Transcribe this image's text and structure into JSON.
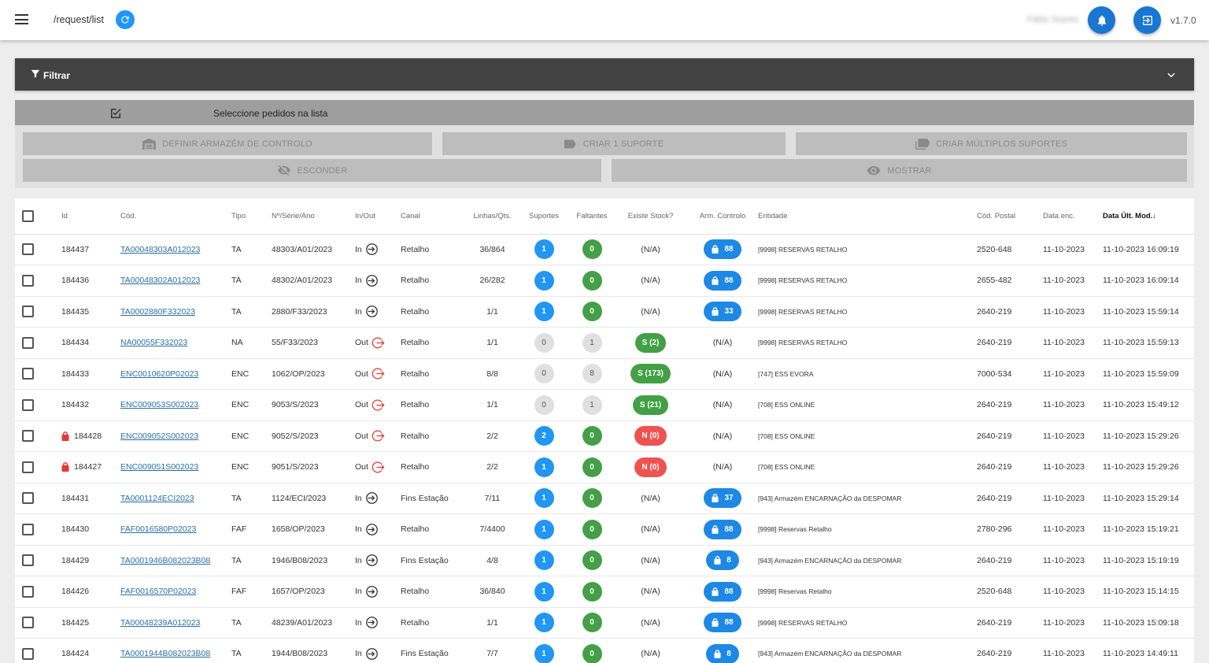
{
  "header": {
    "route": "/request/list",
    "username": "Fábio Soares",
    "version": "v1.7.0"
  },
  "filter": {
    "label": "Filtrar"
  },
  "selection": {
    "text": "Seleccione pedidos na lista"
  },
  "actions": {
    "definir": "DEFINIR ARMAZÉM DE CONTROLO",
    "criar1": "CRIAR 1 SUPORTE",
    "criarMulti": "CRIAR MÚLTIPLOS SUPORTES",
    "esconder": "ESCONDER",
    "mostrar": "MOSTRAR"
  },
  "table": {
    "columns": [
      "Id",
      "Cód.",
      "Tipo",
      "Nº/Série/Ano",
      "In/Out",
      "Canal",
      "Linhas/Qts.",
      "Suportes",
      "Faltantes",
      "Existe Stock?",
      "Arm. Controlo",
      "Entidade",
      "Cód. Postal",
      "Data enc.",
      "Data Últ. Mod."
    ],
    "sort_arrow": "↓",
    "rows": [
      {
        "id": "184437",
        "locked": false,
        "cod": "TA00048303A012023",
        "tipo": "TA",
        "nsa": "48303/A01/2023",
        "io": "In",
        "canal": "Retalho",
        "lq": "36/864",
        "sup": "1",
        "sup_c": "blue",
        "falt": "0",
        "falt_c": "green",
        "stock": "(N/A)",
        "stock_c": "",
        "arm": "88",
        "ent": "[9998] RESERVAS RETALHO",
        "cp": "2520-648",
        "denc": "11-10-2023",
        "dmod": "11-10-2023 16:09:19"
      },
      {
        "id": "184436",
        "locked": false,
        "cod": "TA00048302A012023",
        "tipo": "TA",
        "nsa": "48302/A01/2023",
        "io": "In",
        "canal": "Retalho",
        "lq": "26/282",
        "sup": "1",
        "sup_c": "blue",
        "falt": "0",
        "falt_c": "green",
        "stock": "(N/A)",
        "stock_c": "",
        "arm": "88",
        "ent": "[9998] RESERVAS RETALHO",
        "cp": "2655-482",
        "denc": "11-10-2023",
        "dmod": "11-10-2023 16:09:14"
      },
      {
        "id": "184435",
        "locked": false,
        "cod": "TA0002880F332023",
        "tipo": "TA",
        "nsa": "2880/F33/2023",
        "io": "In",
        "canal": "Retalho",
        "lq": "1/1",
        "sup": "1",
        "sup_c": "blue",
        "falt": "0",
        "falt_c": "green",
        "stock": "(N/A)",
        "stock_c": "",
        "arm": "33",
        "ent": "[9998] RESERVAS RETALHO",
        "cp": "2640-219",
        "denc": "11-10-2023",
        "dmod": "11-10-2023 15:59:14"
      },
      {
        "id": "184434",
        "locked": false,
        "cod": "NA00055F332023",
        "tipo": "NA",
        "nsa": "55/F33/2023",
        "io": "Out",
        "canal": "Retalho",
        "lq": "1/1",
        "sup": "0",
        "sup_c": "grey",
        "falt": "1",
        "falt_c": "grey",
        "stock": "S (2)",
        "stock_c": "green",
        "arm": "",
        "armtext": "(N/A)",
        "ent": "[9998] RESERVAS RETALHO",
        "cp": "2640-219",
        "denc": "11-10-2023",
        "dmod": "11-10-2023 15:59:13"
      },
      {
        "id": "184433",
        "locked": false,
        "cod": "ENC0010620P02023",
        "tipo": "ENC",
        "nsa": "1062/OP/2023",
        "io": "Out",
        "canal": "Retalho",
        "lq": "8/8",
        "sup": "0",
        "sup_c": "grey",
        "falt": "8",
        "falt_c": "grey",
        "stock": "S (173)",
        "stock_c": "green",
        "arm": "",
        "armtext": "(N/A)",
        "ent": "[747] ESS EVORA",
        "cp": "7000-534",
        "denc": "11-10-2023",
        "dmod": "11-10-2023 15:59:09"
      },
      {
        "id": "184432",
        "locked": false,
        "cod": "ENC009053S002023",
        "tipo": "ENC",
        "nsa": "9053/S/2023",
        "io": "Out",
        "canal": "Retalho",
        "lq": "1/1",
        "sup": "0",
        "sup_c": "grey",
        "falt": "1",
        "falt_c": "grey",
        "stock": "S (21)",
        "stock_c": "green",
        "arm": "",
        "armtext": "(N/A)",
        "ent": "[708] ESS ONLINE",
        "cp": "2640-219",
        "denc": "11-10-2023",
        "dmod": "11-10-2023 15:49:12"
      },
      {
        "id": "184428",
        "locked": true,
        "cod": "ENC009052S002023",
        "tipo": "ENC",
        "nsa": "9052/S/2023",
        "io": "Out",
        "canal": "Retalho",
        "lq": "2/2",
        "sup": "2",
        "sup_c": "blue",
        "falt": "0",
        "falt_c": "green",
        "stock": "N (0)",
        "stock_c": "red",
        "arm": "",
        "armtext": "(N/A)",
        "ent": "[708] ESS ONLINE",
        "cp": "2640-219",
        "denc": "11-10-2023",
        "dmod": "11-10-2023 15:29:26"
      },
      {
        "id": "184427",
        "locked": true,
        "cod": "ENC009051S002023",
        "tipo": "ENC",
        "nsa": "9051/S/2023",
        "io": "Out",
        "canal": "Retalho",
        "lq": "2/2",
        "sup": "1",
        "sup_c": "blue",
        "falt": "0",
        "falt_c": "green",
        "stock": "N (0)",
        "stock_c": "red",
        "arm": "",
        "armtext": "(N/A)",
        "ent": "[708] ESS ONLINE",
        "cp": "2640-219",
        "denc": "11-10-2023",
        "dmod": "11-10-2023 15:29:26"
      },
      {
        "id": "184431",
        "locked": false,
        "cod": "TA0001124ECI2023",
        "tipo": "TA",
        "nsa": "1124/ECI/2023",
        "io": "In",
        "canal": "Fins Estação",
        "lq": "7/11",
        "sup": "1",
        "sup_c": "blue",
        "falt": "0",
        "falt_c": "green",
        "stock": "(N/A)",
        "stock_c": "",
        "arm": "37",
        "ent": "[943] Armazém ENCARNAÇÃO da DESPOMAR",
        "cp": "2640-219",
        "denc": "11-10-2023",
        "dmod": "11-10-2023 15:29:14"
      },
      {
        "id": "184430",
        "locked": false,
        "cod": "FAF0016580P02023",
        "tipo": "FAF",
        "nsa": "1658/OP/2023",
        "io": "In",
        "canal": "Retalho",
        "lq": "7/4400",
        "sup": "1",
        "sup_c": "blue",
        "falt": "0",
        "falt_c": "green",
        "stock": "(N/A)",
        "stock_c": "",
        "arm": "88",
        "ent": "[9998] Reservas Retalho",
        "cp": "2780-296",
        "denc": "11-10-2023",
        "dmod": "11-10-2023 15:19:21"
      },
      {
        "id": "184429",
        "locked": false,
        "cod": "TA0001946B082023B08",
        "tipo": "TA",
        "nsa": "1946/B08/2023",
        "io": "In",
        "canal": "Fins Estação",
        "lq": "4/8",
        "sup": "1",
        "sup_c": "blue",
        "falt": "0",
        "falt_c": "green",
        "stock": "(N/A)",
        "stock_c": "",
        "arm": "8",
        "ent": "[943] Armazém ENCARNAÇÃO da DESPOMAR",
        "cp": "2640-219",
        "denc": "11-10-2023",
        "dmod": "11-10-2023 15:19:19"
      },
      {
        "id": "184426",
        "locked": false,
        "cod": "FAF0016570P02023",
        "tipo": "FAF",
        "nsa": "1657/OP/2023",
        "io": "In",
        "canal": "Retalho",
        "lq": "36/840",
        "sup": "1",
        "sup_c": "blue",
        "falt": "0",
        "falt_c": "green",
        "stock": "(N/A)",
        "stock_c": "",
        "arm": "88",
        "ent": "[9998] Reservas Retalho",
        "cp": "2520-648",
        "denc": "11-10-2023",
        "dmod": "11-10-2023 15:14:15"
      },
      {
        "id": "184425",
        "locked": false,
        "cod": "TA00048239A012023",
        "tipo": "TA",
        "nsa": "48239/A01/2023",
        "io": "In",
        "canal": "Retalho",
        "lq": "1/1",
        "sup": "1",
        "sup_c": "blue",
        "falt": "0",
        "falt_c": "green",
        "stock": "(N/A)",
        "stock_c": "",
        "arm": "88",
        "ent": "[9998] RESERVAS RETALHO",
        "cp": "2640-219",
        "denc": "11-10-2023",
        "dmod": "11-10-2023 15:09:18"
      },
      {
        "id": "184424",
        "locked": false,
        "cod": "TA0001944B082023B08",
        "tipo": "TA",
        "nsa": "1944/B08/2023",
        "io": "In",
        "canal": "Fins Estação",
        "lq": "7/7",
        "sup": "1",
        "sup_c": "blue",
        "falt": "0",
        "falt_c": "green",
        "stock": "(N/A)",
        "stock_c": "",
        "arm": "8",
        "ent": "[943] Armazém ENCARNAÇÃO da DESPOMAR",
        "cp": "2640-219",
        "denc": "11-10-2023",
        "dmod": "11-10-2023 14:49:11"
      }
    ]
  }
}
